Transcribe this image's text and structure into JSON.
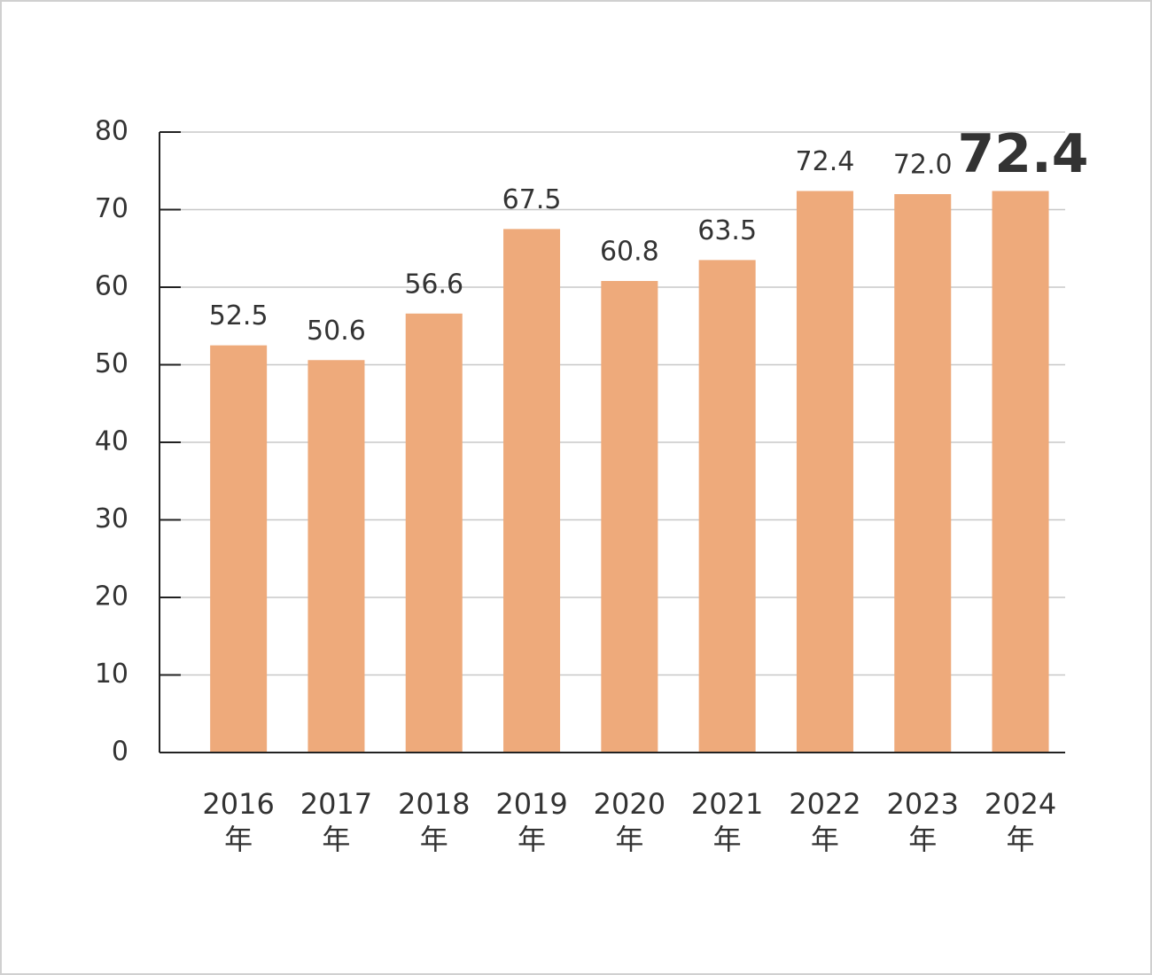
{
  "chart_data": {
    "type": "bar",
    "categories": [
      "2016年",
      "2017年",
      "2018年",
      "2019年",
      "2020年",
      "2021年",
      "2022年",
      "2023年",
      "2024年"
    ],
    "values": [
      52.5,
      50.6,
      56.6,
      67.5,
      60.8,
      63.5,
      72.4,
      72.0,
      72.4
    ],
    "value_labels": [
      "52.5",
      "50.6",
      "56.6",
      "67.5",
      "60.8",
      "63.5",
      "72.4",
      "72.0",
      "72.4"
    ],
    "color": "#eeaa7b",
    "ylim": [
      0,
      80
    ],
    "yticks": [
      0,
      10,
      20,
      30,
      40,
      50,
      60,
      70,
      80
    ],
    "grid": true
  }
}
